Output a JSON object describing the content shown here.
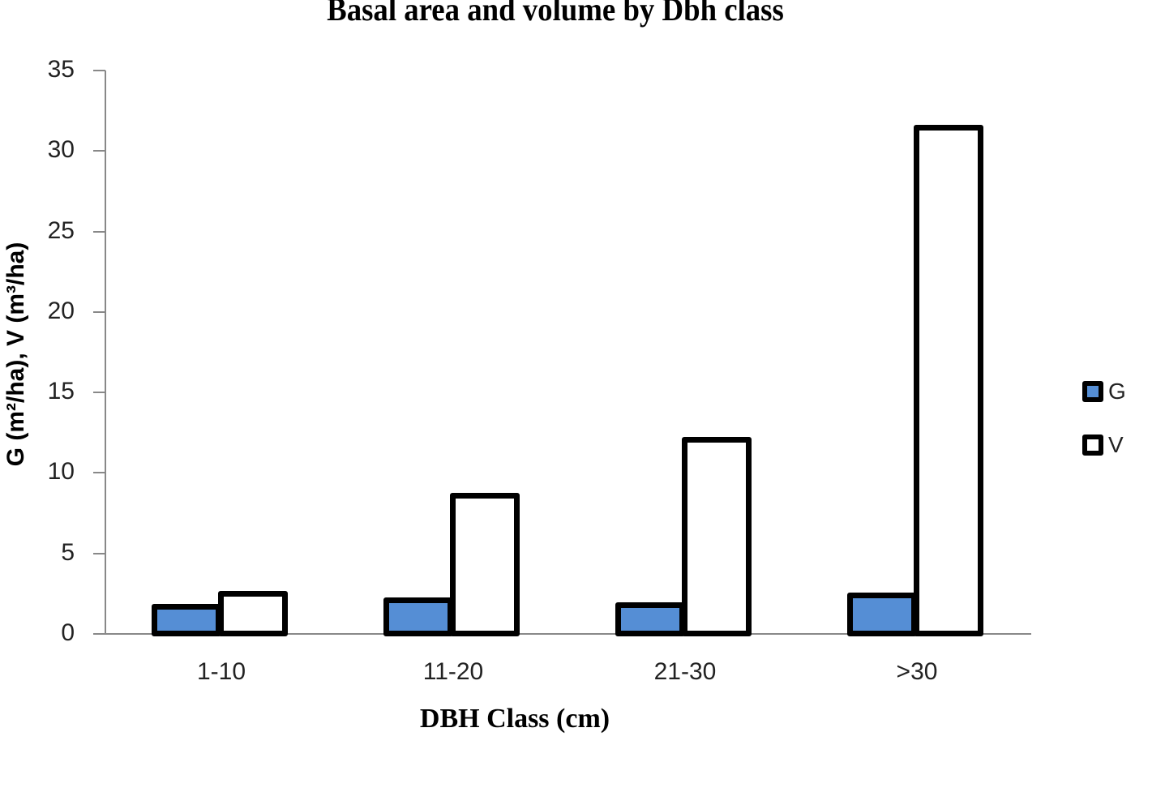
{
  "chart_data": {
    "type": "bar",
    "title": "Basal area and volume by Dbh class",
    "xlabel": "DBH Class (cm)",
    "ylabel": "G (m²/ha), V (m³/ha)",
    "categories": [
      "1-10",
      "11-20",
      "21-30",
      ">30"
    ],
    "series": [
      {
        "name": "G",
        "color": "#558ed5",
        "values": [
          1.7,
          2.1,
          1.8,
          2.4
        ]
      },
      {
        "name": "V",
        "color": "#ffffff",
        "values": [
          2.5,
          8.6,
          12.1,
          31.5
        ]
      }
    ],
    "ylim": [
      0,
      35
    ],
    "yticks": [
      0,
      5,
      10,
      15,
      20,
      25,
      30,
      35
    ],
    "grid": false,
    "legend_position": "right"
  }
}
